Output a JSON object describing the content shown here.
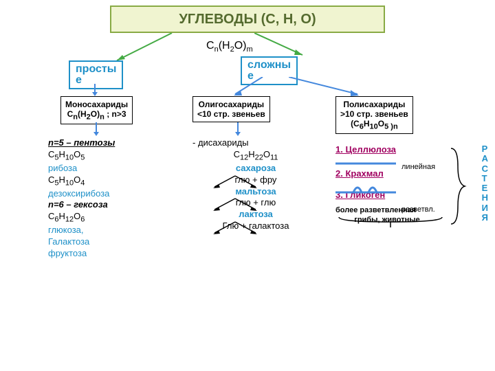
{
  "title": "УГЛЕВОДЫ (С, Н, О)",
  "main_formula_html": "C<span class='sub'>n</span>(H<span class='sub'>2</span>O)<span class='sub'>m</span>",
  "categories": {
    "simple": "просты\nе",
    "complex": "сложны\nе"
  },
  "subcategories": {
    "mono": {
      "title": "Моносахариды",
      "formula_html": "C<span class='sub'>n</span>(H<span class='sub'>2</span>O)<span class='sub'>n</span> ; n>3"
    },
    "oligo": {
      "title": "Олигосахариды",
      "sub": "<10 стр. звеньев"
    },
    "poly": {
      "title": "Полисахариды",
      "sub": ">10 стр. звеньев",
      "formula_html": "(С<span class='sub'>6</span>Н<span class='sub'>10</span>О<span class='sub'>5 )</span><span class='sub'>n</span>"
    }
  },
  "col1": {
    "pentose_label": "n=5 – пентозы",
    "ribose_formula_html": "С<span class='sub'>5</span>Н<span class='sub'>10</span>О<span class='sub'>5</span>",
    "ribose": "рибоза",
    "deoxy_formula_html": "С<span class='sub'>5</span>Н<span class='sub'>10</span>О<span class='sub'>4</span>",
    "deoxy": "дезоксирибоза",
    "hexose_label": "n=6 – гексоза",
    "glucose_formula_html": "С<span class='sub'>6</span>Н<span class='sub'>12</span>О<span class='sub'>6</span>",
    "glucose": "глюкоза,",
    "galactose": "Галактоза",
    "fructose": "фруктоза"
  },
  "col2": {
    "disacch": "- дисахариды",
    "disacch_formula_html": "С<span class='sub'>12</span>Н<span class='sub'>22</span>О<span class='sub'>11</span>",
    "sucrose": "сахароза",
    "glu_fru": "глю   +   фру",
    "maltose": "мальтоза",
    "glu_glu": "глю   +  глю",
    "lactose": "лактоза",
    "glu_gal": "Глю   +   галактоза"
  },
  "col3": {
    "cellulose": "1. Целлюлоза",
    "linear": "линейная",
    "starch": "2. Крахмал",
    "branched": "разветвл.",
    "glycogen": "3. Гликоген",
    "more_branched": "более разветвленная",
    "fungi": "грибы, животные"
  },
  "side_label": "Р\nА\nС\nТ\nЕ\nН\nИ\nЯ",
  "colors": {
    "title_bg": "#f0f4d0",
    "title_border": "#88aa44",
    "title_text": "#556b2f",
    "blue": "#1e90c8",
    "fushia": "#a00060",
    "arrow_green": "#44aa44",
    "arrow_blue": "#4488dd"
  }
}
